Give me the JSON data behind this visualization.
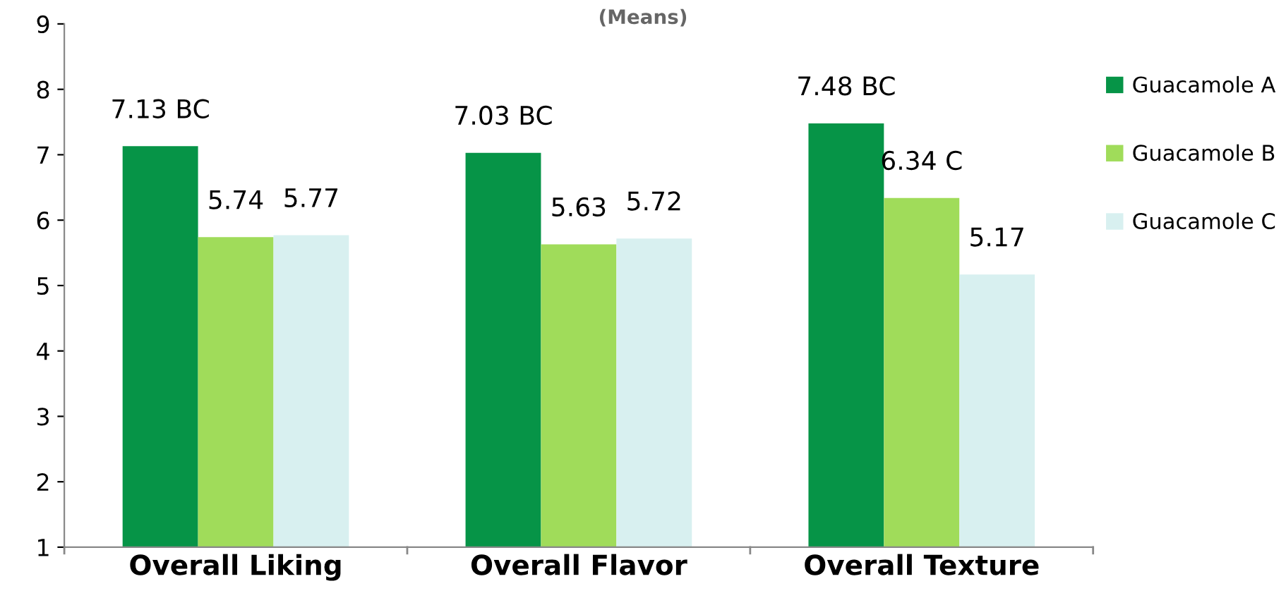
{
  "chart_data": {
    "type": "bar",
    "subtitle": "(Means)",
    "categories": [
      "Overall Liking",
      "Overall Flavor",
      "Overall Texture"
    ],
    "series": [
      {
        "name": "Guacamole A",
        "color": "#069447",
        "values": [
          7.13,
          7.03,
          7.48
        ],
        "value_labels": [
          "7.13 BC",
          "7.03 BC",
          "7.48 BC"
        ]
      },
      {
        "name": "Guacamole B",
        "color": "#a0dc5a",
        "values": [
          5.74,
          5.63,
          6.34
        ],
        "value_labels": [
          "5.74",
          "5.63",
          "6.34 C"
        ]
      },
      {
        "name": "Guacamole C",
        "color": "#d8f0f0",
        "values": [
          5.77,
          5.72,
          5.17
        ],
        "value_labels": [
          "5.77",
          "5.72",
          "5.17"
        ]
      }
    ],
    "ylim": [
      1,
      9
    ],
    "yticks": [
      1,
      2,
      3,
      4,
      5,
      6,
      7,
      8,
      9
    ],
    "grid": false,
    "legend": "right"
  }
}
